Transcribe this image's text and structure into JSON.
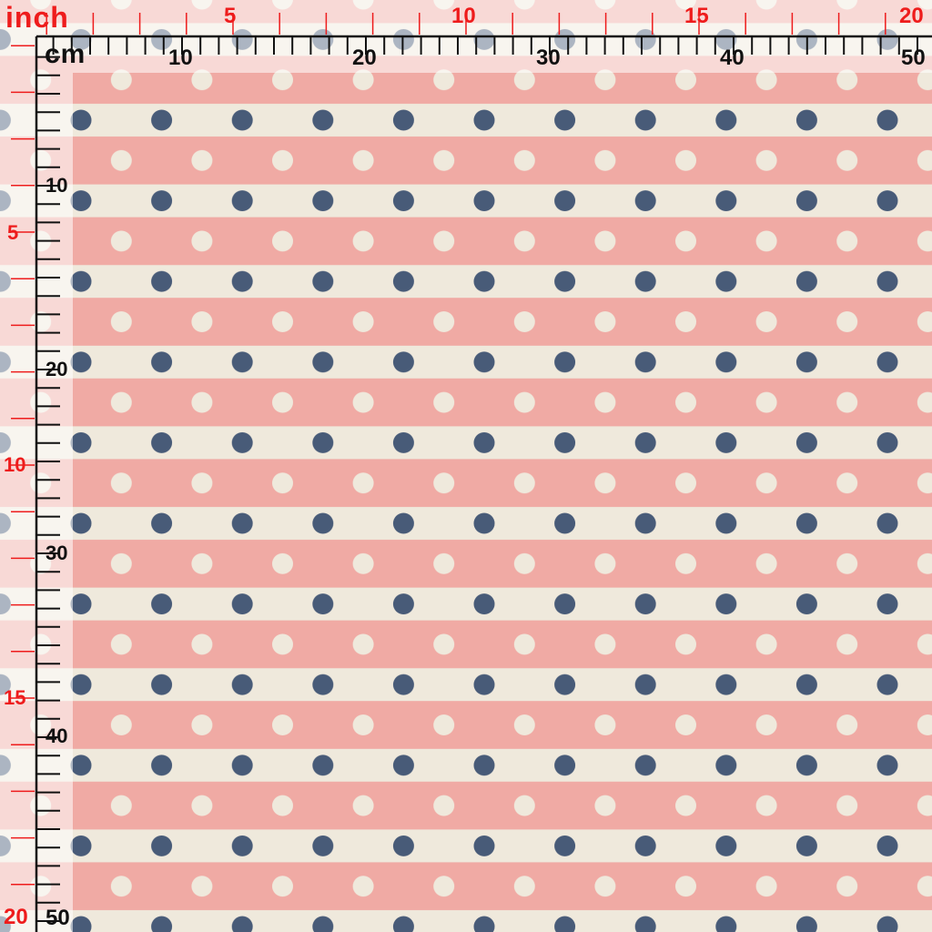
{
  "fabric": {
    "colors": {
      "pink": "#f0aaa4",
      "cream": "#efe9dc",
      "navy": "#485b78"
    }
  },
  "rulers": {
    "inch_unit": "inch",
    "cm_unit": "cm",
    "inch_color": "#ee1c1c",
    "cm_color": "#111111",
    "top_inch_labels": [
      "5",
      "10",
      "15",
      "20"
    ],
    "top_cm_labels": [
      "10",
      "20",
      "30",
      "40",
      "50"
    ],
    "left_inch_labels": [
      "5",
      "10",
      "15",
      "20"
    ],
    "left_cm_labels": [
      "10",
      "20",
      "30",
      "40",
      "50"
    ]
  }
}
